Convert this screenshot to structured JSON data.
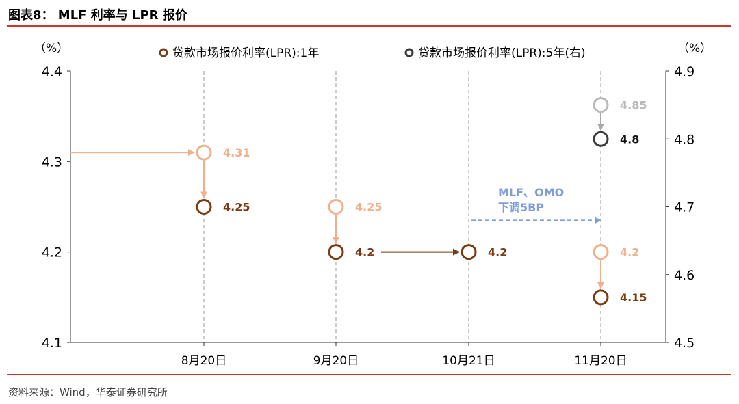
{
  "title": "图表8： MLF 利率与 LPR 报价",
  "source": "资料来源：Wind，华泰证券研究所",
  "colors": {
    "lpr1": "#7a3b12",
    "lpr1_old": "#f0b08c",
    "lpr5": "#3a3a3a",
    "lpr5_old": "#b9b9b9",
    "annotation": "#7f9fd8",
    "rule": "#c8392b"
  },
  "chart_data": {
    "type": "scatter",
    "categories": [
      "8月20日",
      "9月20日",
      "10月21日",
      "11月20日"
    ],
    "y_left": {
      "unit": "（%）",
      "range": [
        4.1,
        4.4
      ],
      "ticks": [
        "4.1",
        "4.2",
        "4.3",
        "4.4"
      ]
    },
    "y_right": {
      "unit": "（%）",
      "range": [
        4.5,
        4.9
      ],
      "ticks": [
        "4.5",
        "4.6",
        "4.7",
        "4.8",
        "4.9"
      ]
    },
    "series": [
      {
        "name": "贷款市场报价利率(LPR):1年",
        "axis": "left",
        "previous": [
          {
            "category": "8月20日",
            "value": 4.31,
            "label": "4.31"
          },
          {
            "category": "9月20日",
            "value": 4.25,
            "label": "4.25"
          },
          {
            "category": "11月20日",
            "value": 4.2,
            "label": "4.2"
          }
        ],
        "points": [
          {
            "category": "8月20日",
            "value": 4.25,
            "label": "4.25"
          },
          {
            "category": "9月20日",
            "value": 4.2,
            "label": "4.2"
          },
          {
            "category": "10月21日",
            "value": 4.2,
            "label": "4.2"
          },
          {
            "category": "11月20日",
            "value": 4.15,
            "label": "4.15"
          }
        ]
      },
      {
        "name": "贷款市场报价利率(LPR):5年(右)",
        "axis": "right",
        "previous": [
          {
            "category": "11月20日",
            "value": 4.85,
            "label": "4.85"
          }
        ],
        "points": [
          {
            "category": "11月20日",
            "value": 4.8,
            "label": "4.8"
          }
        ]
      }
    ],
    "annotations": [
      {
        "lines": [
          "MLF、OMO",
          "下调5BP"
        ],
        "from": "10月21日",
        "to": "11月20日",
        "y": 4.235
      }
    ]
  }
}
